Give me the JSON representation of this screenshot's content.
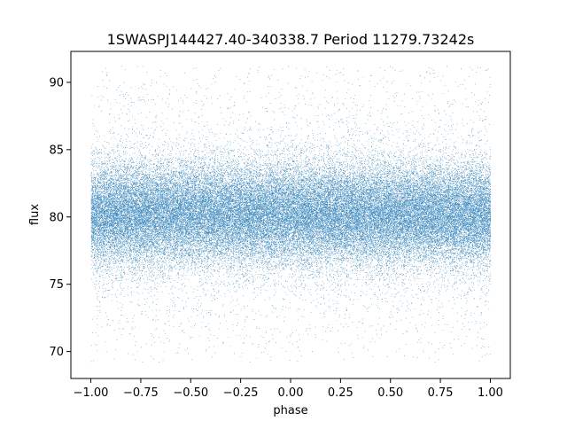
{
  "chart_data": {
    "type": "scatter",
    "title": "1SWASPJ144427.40-340338.7 Period 11279.73242s",
    "xlabel": "phase",
    "ylabel": "flux",
    "xlim": [
      -1.1,
      1.1
    ],
    "ylim": [
      68.0,
      92.3
    ],
    "xticks": [
      -1.0,
      -0.75,
      -0.5,
      -0.25,
      0.0,
      0.25,
      0.5,
      0.75,
      1.0
    ],
    "xtick_labels": [
      "−1.00",
      "−0.75",
      "−0.50",
      "−0.25",
      "0.00",
      "0.25",
      "0.50",
      "0.75",
      "1.00"
    ],
    "yticks": [
      70,
      75,
      80,
      85,
      90
    ],
    "ytick_labels": [
      "70",
      "75",
      "80",
      "85",
      "90"
    ],
    "grid": false,
    "marker_color": "#1f77b4",
    "phase_range": [
      -1.0,
      1.0
    ],
    "flux_center": 80.2,
    "flux_dense_band": [
      76.5,
      84.0
    ],
    "flux_range": [
      69.2,
      91.2
    ],
    "approx_point_count": 60000
  }
}
